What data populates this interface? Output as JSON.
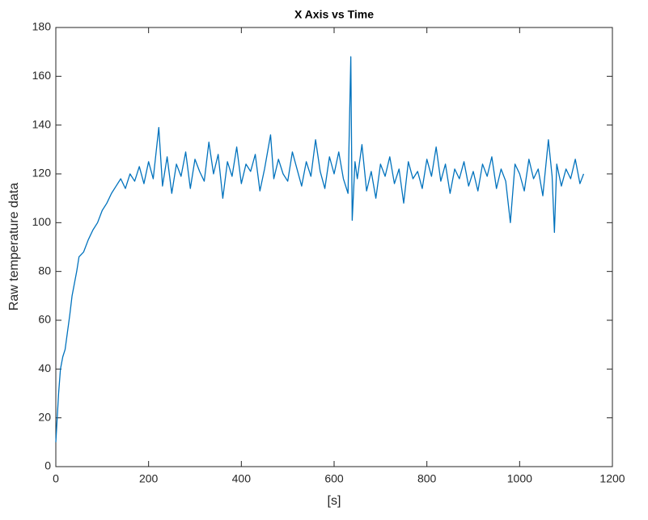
{
  "chart_data": {
    "type": "line",
    "title": "X Axis vs Time",
    "xlabel": "[s]",
    "ylabel": "Raw temperature data",
    "x": [
      0,
      3,
      6,
      10,
      15,
      20,
      25,
      30,
      35,
      40,
      45,
      50,
      60,
      70,
      80,
      90,
      100,
      110,
      120,
      130,
      140,
      150,
      160,
      170,
      180,
      190,
      200,
      210,
      222,
      230,
      240,
      250,
      260,
      270,
      280,
      290,
      300,
      310,
      320,
      330,
      340,
      350,
      360,
      370,
      380,
      390,
      400,
      410,
      420,
      430,
      440,
      450,
      463,
      470,
      480,
      490,
      500,
      510,
      520,
      530,
      540,
      550,
      560,
      570,
      580,
      590,
      600,
      610,
      620,
      630,
      636,
      639,
      645,
      650,
      660,
      670,
      680,
      690,
      700,
      710,
      720,
      730,
      740,
      750,
      760,
      770,
      780,
      790,
      800,
      810,
      820,
      830,
      840,
      850,
      860,
      870,
      880,
      890,
      900,
      910,
      920,
      930,
      940,
      950,
      960,
      970,
      980,
      990,
      1000,
      1010,
      1020,
      1030,
      1040,
      1050,
      1062,
      1070,
      1075,
      1080,
      1090,
      1100,
      1110,
      1120,
      1130,
      1138
    ],
    "series": [
      {
        "name": "Raw temperature data",
        "color": "#0072bd",
        "values": [
          10,
          20,
          30,
          40,
          45,
          48,
          55,
          62,
          70,
          75,
          80,
          86,
          88,
          93,
          97,
          100,
          105,
          108,
          112,
          115,
          118,
          114,
          120,
          117,
          123,
          116,
          125,
          118,
          139,
          115,
          127,
          112,
          124,
          119,
          129,
          114,
          126,
          121,
          117,
          133,
          120,
          128,
          110,
          125,
          119,
          131,
          116,
          124,
          121,
          128,
          113,
          122,
          136,
          118,
          126,
          120,
          117,
          129,
          122,
          115,
          125,
          119,
          134,
          121,
          114,
          127,
          120,
          129,
          118,
          112,
          168,
          101,
          125,
          118,
          132,
          113,
          121,
          110,
          124,
          119,
          127,
          116,
          122,
          108,
          125,
          118,
          121,
          114,
          126,
          119,
          131,
          117,
          124,
          112,
          122,
          118,
          125,
          115,
          121,
          113,
          124,
          119,
          127,
          114,
          122,
          117,
          100,
          124,
          120,
          113,
          126,
          118,
          122,
          111,
          134,
          119,
          96,
          124,
          115,
          122,
          118,
          126,
          116,
          120
        ]
      }
    ],
    "xlim": [
      0,
      1200
    ],
    "xticks": [
      0,
      200,
      400,
      600,
      800,
      1000,
      1200
    ],
    "ylim": [
      0,
      180
    ],
    "yticks": [
      0,
      20,
      40,
      60,
      80,
      100,
      120,
      140,
      160,
      180
    ]
  }
}
